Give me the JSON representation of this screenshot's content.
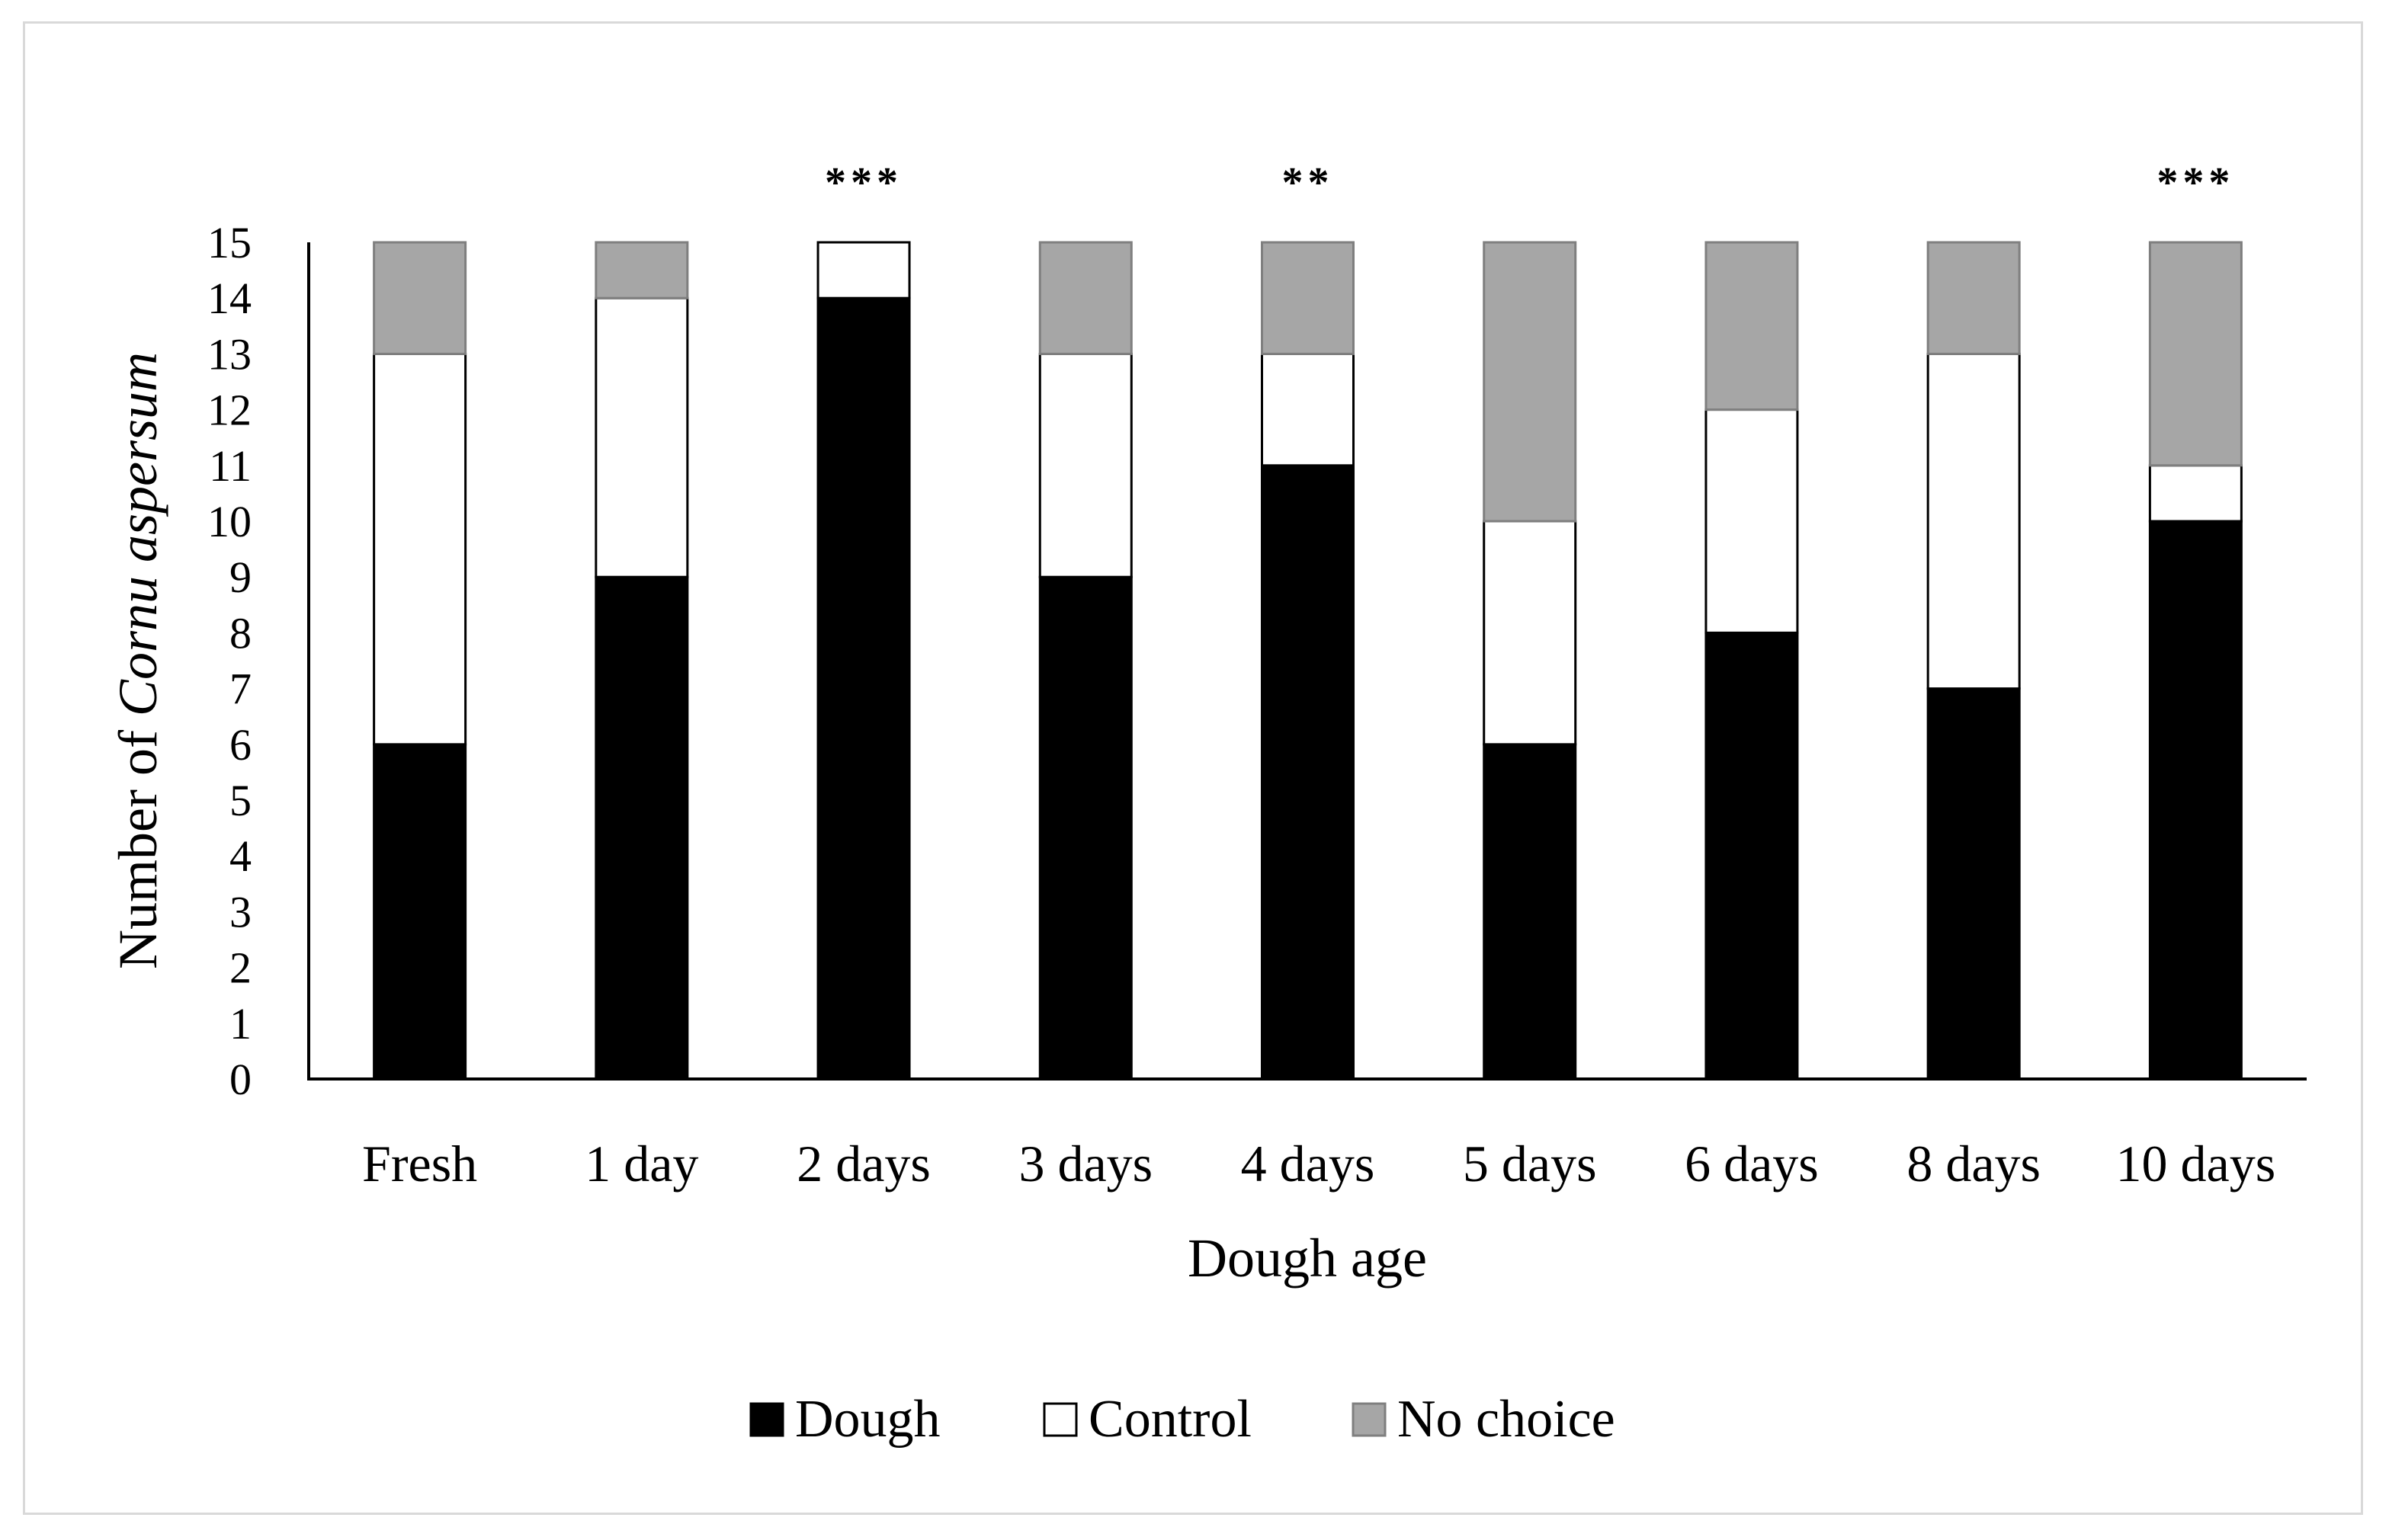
{
  "chart_data": {
    "type": "bar",
    "stacked": true,
    "categories": [
      "Fresh",
      "1 day",
      "2 days",
      "3 days",
      "4 days",
      "5 days",
      "6 days",
      "8 days",
      "10 days"
    ],
    "series": [
      {
        "name": "Dough",
        "color": "#000000",
        "values": [
          6,
          9,
          14,
          9,
          11,
          6,
          8,
          7,
          10
        ]
      },
      {
        "name": "Control",
        "color": "#ffffff",
        "values": [
          7,
          5,
          1,
          4,
          2,
          4,
          4,
          6,
          1
        ]
      },
      {
        "name": "No choice",
        "color": "#a6a6a6",
        "values": [
          2,
          1,
          0,
          2,
          2,
          5,
          3,
          2,
          4
        ]
      }
    ],
    "significance": [
      "",
      "",
      "***",
      "",
      "**",
      "",
      "",
      "",
      "***"
    ],
    "ylabel_prefix": "Number of ",
    "ylabel_italic": "Cornu aspersum",
    "xlabel": "Dough age",
    "ylim": [
      0,
      15
    ],
    "yticks": [
      0,
      1,
      2,
      3,
      4,
      5,
      6,
      7,
      8,
      9,
      10,
      11,
      12,
      13,
      14,
      15
    ],
    "legend_position": "bottom",
    "grid": false
  }
}
